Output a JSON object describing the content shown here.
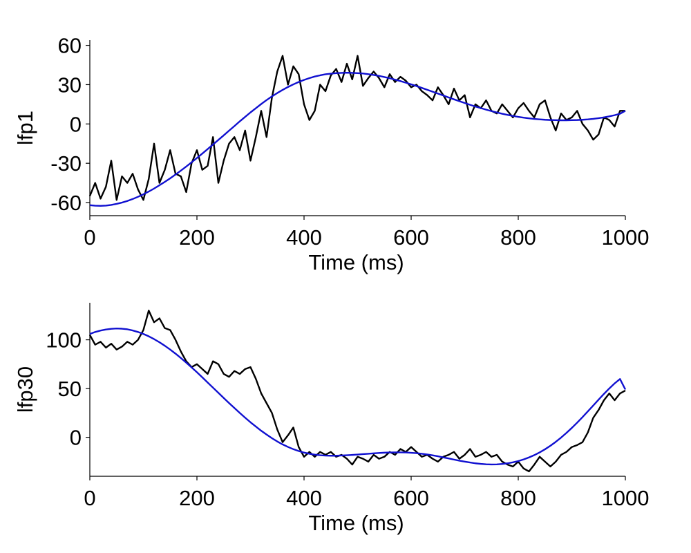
{
  "colors": {
    "raw": "#000000",
    "fit": "#1010d0"
  },
  "chart_data": [
    {
      "type": "line",
      "xlabel": "Time (ms)",
      "ylabel": "lfp1",
      "xlim": [
        0,
        1000
      ],
      "ylim": [
        -70,
        64
      ],
      "x_ticks": [
        0,
        200,
        400,
        600,
        800,
        1000
      ],
      "y_ticks": [
        -60,
        -30,
        0,
        30,
        60
      ],
      "x_tick_labels": [
        "0",
        "200",
        "400",
        "600",
        "800",
        "1000"
      ],
      "y_tick_labels": [
        "-60",
        "-30",
        "0",
        "30",
        "60"
      ],
      "grid": false,
      "series": [
        {
          "role": "raw",
          "x": [
            0,
            10,
            20,
            30,
            40,
            50,
            60,
            70,
            80,
            90,
            100,
            110,
            120,
            130,
            140,
            150,
            160,
            170,
            180,
            190,
            200,
            210,
            220,
            230,
            240,
            250,
            260,
            270,
            280,
            290,
            300,
            310,
            320,
            330,
            340,
            350,
            360,
            370,
            380,
            390,
            400,
            410,
            420,
            430,
            440,
            450,
            460,
            470,
            480,
            490,
            500,
            510,
            520,
            530,
            540,
            550,
            560,
            570,
            580,
            590,
            600,
            610,
            620,
            630,
            640,
            650,
            660,
            670,
            680,
            690,
            700,
            710,
            720,
            730,
            740,
            750,
            760,
            770,
            780,
            790,
            800,
            810,
            820,
            830,
            840,
            850,
            860,
            870,
            880,
            890,
            900,
            910,
            920,
            930,
            940,
            950,
            960,
            970,
            980,
            990,
            1000
          ],
          "y": [
            -55,
            -45,
            -57,
            -48,
            -28,
            -58,
            -40,
            -45,
            -38,
            -50,
            -58,
            -42,
            -15,
            -45,
            -35,
            -20,
            -38,
            -40,
            -52,
            -30,
            -20,
            -35,
            -32,
            -10,
            -45,
            -28,
            -15,
            -10,
            -20,
            -5,
            -28,
            -10,
            10,
            -10,
            20,
            40,
            52,
            30,
            44,
            38,
            15,
            3,
            10,
            30,
            25,
            37,
            42,
            32,
            46,
            34,
            52,
            29,
            35,
            40,
            35,
            28,
            38,
            32,
            36,
            33,
            28,
            30,
            25,
            22,
            18,
            28,
            22,
            15,
            27,
            18,
            22,
            5,
            15,
            12,
            18,
            10,
            8,
            15,
            10,
            5,
            12,
            16,
            10,
            5,
            15,
            18,
            5,
            -5,
            8,
            3,
            5,
            10,
            0,
            -5,
            -12,
            -8,
            5,
            3,
            -2,
            10,
            10
          ]
        },
        {
          "role": "fit",
          "x": [
            0,
            10,
            20,
            30,
            40,
            50,
            60,
            70,
            80,
            90,
            100,
            110,
            120,
            130,
            140,
            150,
            160,
            170,
            180,
            190,
            200,
            210,
            220,
            230,
            240,
            250,
            260,
            270,
            280,
            290,
            300,
            310,
            320,
            330,
            340,
            350,
            360,
            370,
            380,
            390,
            400,
            410,
            420,
            430,
            440,
            450,
            460,
            470,
            480,
            490,
            500,
            510,
            520,
            530,
            540,
            550,
            560,
            570,
            580,
            590,
            600,
            610,
            620,
            630,
            640,
            650,
            660,
            670,
            680,
            690,
            700,
            710,
            720,
            730,
            740,
            750,
            760,
            770,
            780,
            790,
            800,
            810,
            820,
            830,
            840,
            850,
            860,
            870,
            880,
            890,
            900,
            910,
            920,
            930,
            940,
            950,
            960,
            970,
            980,
            990,
            1000
          ],
          "y": [
            -62,
            -62.4,
            -62.5,
            -62.3,
            -61.8,
            -61,
            -60,
            -58.8,
            -57.3,
            -55.6,
            -53.7,
            -51.6,
            -49.3,
            -46.8,
            -44.2,
            -41.5,
            -38.6,
            -35.6,
            -32.5,
            -29.3,
            -26,
            -22.6,
            -19.2,
            -15.7,
            -12.2,
            -8.7,
            -5.1,
            -1.6,
            2,
            5.4,
            8.8,
            12,
            15.2,
            18.2,
            21,
            23.6,
            26,
            28.2,
            30.2,
            32,
            33.6,
            35,
            36.2,
            37.1,
            37.9,
            38.4,
            38.8,
            39,
            39.1,
            39,
            38.8,
            38.5,
            38,
            37.4,
            36.7,
            35.8,
            34.9,
            33.8,
            32.7,
            31.5,
            30.2,
            28.9,
            27.5,
            26.1,
            24.6,
            23.2,
            21.7,
            20.2,
            18.8,
            17.4,
            16,
            14.6,
            13.3,
            12.1,
            10.9,
            9.8,
            8.8,
            7.8,
            6.9,
            6.1,
            5.4,
            4.8,
            4.3,
            3.8,
            3.5,
            3.2,
            3,
            2.9,
            2.8,
            2.8,
            2.9,
            3,
            3.2,
            3.5,
            3.9,
            4.4,
            5,
            5.8,
            6.7,
            7.8,
            10
          ]
        }
      ]
    },
    {
      "type": "line",
      "xlabel": "Time (ms)",
      "ylabel": "lfp30",
      "xlim": [
        0,
        1000
      ],
      "ylim": [
        -40,
        138
      ],
      "x_ticks": [
        0,
        200,
        400,
        600,
        800,
        1000
      ],
      "y_ticks": [
        0,
        50,
        100
      ],
      "x_tick_labels": [
        "0",
        "200",
        "400",
        "600",
        "800",
        "1000"
      ],
      "y_tick_labels": [
        "0",
        "50",
        "100"
      ],
      "grid": false,
      "series": [
        {
          "role": "raw",
          "x": [
            0,
            10,
            20,
            30,
            40,
            50,
            60,
            70,
            80,
            90,
            100,
            110,
            120,
            130,
            140,
            150,
            160,
            170,
            180,
            190,
            200,
            210,
            220,
            230,
            240,
            250,
            260,
            270,
            280,
            290,
            300,
            310,
            320,
            330,
            340,
            350,
            360,
            370,
            380,
            390,
            400,
            410,
            420,
            430,
            440,
            450,
            460,
            470,
            480,
            490,
            500,
            510,
            520,
            530,
            540,
            550,
            560,
            570,
            580,
            590,
            600,
            610,
            620,
            630,
            640,
            650,
            660,
            670,
            680,
            690,
            700,
            710,
            720,
            730,
            740,
            750,
            760,
            770,
            780,
            790,
            800,
            810,
            820,
            830,
            840,
            850,
            860,
            870,
            880,
            890,
            900,
            910,
            920,
            930,
            940,
            950,
            960,
            970,
            980,
            990,
            1000
          ],
          "y": [
            105,
            95,
            98,
            92,
            96,
            90,
            93,
            98,
            95,
            100,
            110,
            130,
            118,
            122,
            112,
            110,
            100,
            88,
            78,
            72,
            75,
            70,
            65,
            78,
            75,
            65,
            62,
            68,
            65,
            70,
            72,
            60,
            45,
            35,
            25,
            8,
            -5,
            2,
            10,
            -10,
            -20,
            -15,
            -20,
            -15,
            -18,
            -15,
            -20,
            -18,
            -22,
            -28,
            -20,
            -22,
            -25,
            -18,
            -22,
            -20,
            -15,
            -18,
            -12,
            -15,
            -10,
            -15,
            -20,
            -18,
            -22,
            -25,
            -20,
            -18,
            -15,
            -22,
            -18,
            -12,
            -20,
            -18,
            -15,
            -20,
            -18,
            -25,
            -28,
            -30,
            -25,
            -32,
            -35,
            -28,
            -20,
            -25,
            -30,
            -25,
            -18,
            -15,
            -10,
            -8,
            -5,
            5,
            20,
            28,
            38,
            45,
            38,
            45,
            48
          ]
        },
        {
          "role": "fit",
          "x": [
            0,
            10,
            20,
            30,
            40,
            50,
            60,
            70,
            80,
            90,
            100,
            110,
            120,
            130,
            140,
            150,
            160,
            170,
            180,
            190,
            200,
            210,
            220,
            230,
            240,
            250,
            260,
            270,
            280,
            290,
            300,
            310,
            320,
            330,
            340,
            350,
            360,
            370,
            380,
            390,
            400,
            410,
            420,
            430,
            440,
            450,
            460,
            470,
            480,
            490,
            500,
            510,
            520,
            530,
            540,
            550,
            560,
            570,
            580,
            590,
            600,
            610,
            620,
            630,
            640,
            650,
            660,
            670,
            680,
            690,
            700,
            710,
            720,
            730,
            740,
            750,
            760,
            770,
            780,
            790,
            800,
            810,
            820,
            830,
            840,
            850,
            860,
            870,
            880,
            890,
            900,
            910,
            920,
            930,
            940,
            950,
            960,
            970,
            980,
            990,
            1000
          ],
          "y": [
            106,
            108,
            109.5,
            110.6,
            111.3,
            111.6,
            111.4,
            110.8,
            109.6,
            108,
            106,
            103.6,
            100.7,
            97.5,
            93.9,
            90,
            85.8,
            81.3,
            76.6,
            71.7,
            66.7,
            61.5,
            56.2,
            50.9,
            45.6,
            40.3,
            35.1,
            30,
            25,
            20.1,
            15.4,
            11,
            6.7,
            2.8,
            -0.9,
            -4.3,
            -7.3,
            -9.9,
            -12.2,
            -14.1,
            -15.7,
            -16.9,
            -17.8,
            -18.4,
            -18.8,
            -18.9,
            -18.9,
            -18.7,
            -18.4,
            -18.1,
            -17.7,
            -17.3,
            -16.9,
            -16.5,
            -16.1,
            -15.8,
            -15.6,
            -15.5,
            -15.5,
            -15.6,
            -15.9,
            -16.3,
            -16.9,
            -17.6,
            -18.5,
            -19.5,
            -20.6,
            -21.7,
            -22.9,
            -24,
            -25,
            -25.9,
            -26.7,
            -27.3,
            -27.7,
            -27.9,
            -27.8,
            -27.4,
            -26.7,
            -25.7,
            -24.4,
            -22.7,
            -20.7,
            -18.3,
            -15.5,
            -12.3,
            -8.7,
            -4.7,
            -0.3,
            4.5,
            9.6,
            15,
            20.7,
            26.6,
            32.6,
            38.6,
            44.5,
            50.1,
            55.3,
            59.8,
            49
          ]
        }
      ]
    }
  ]
}
